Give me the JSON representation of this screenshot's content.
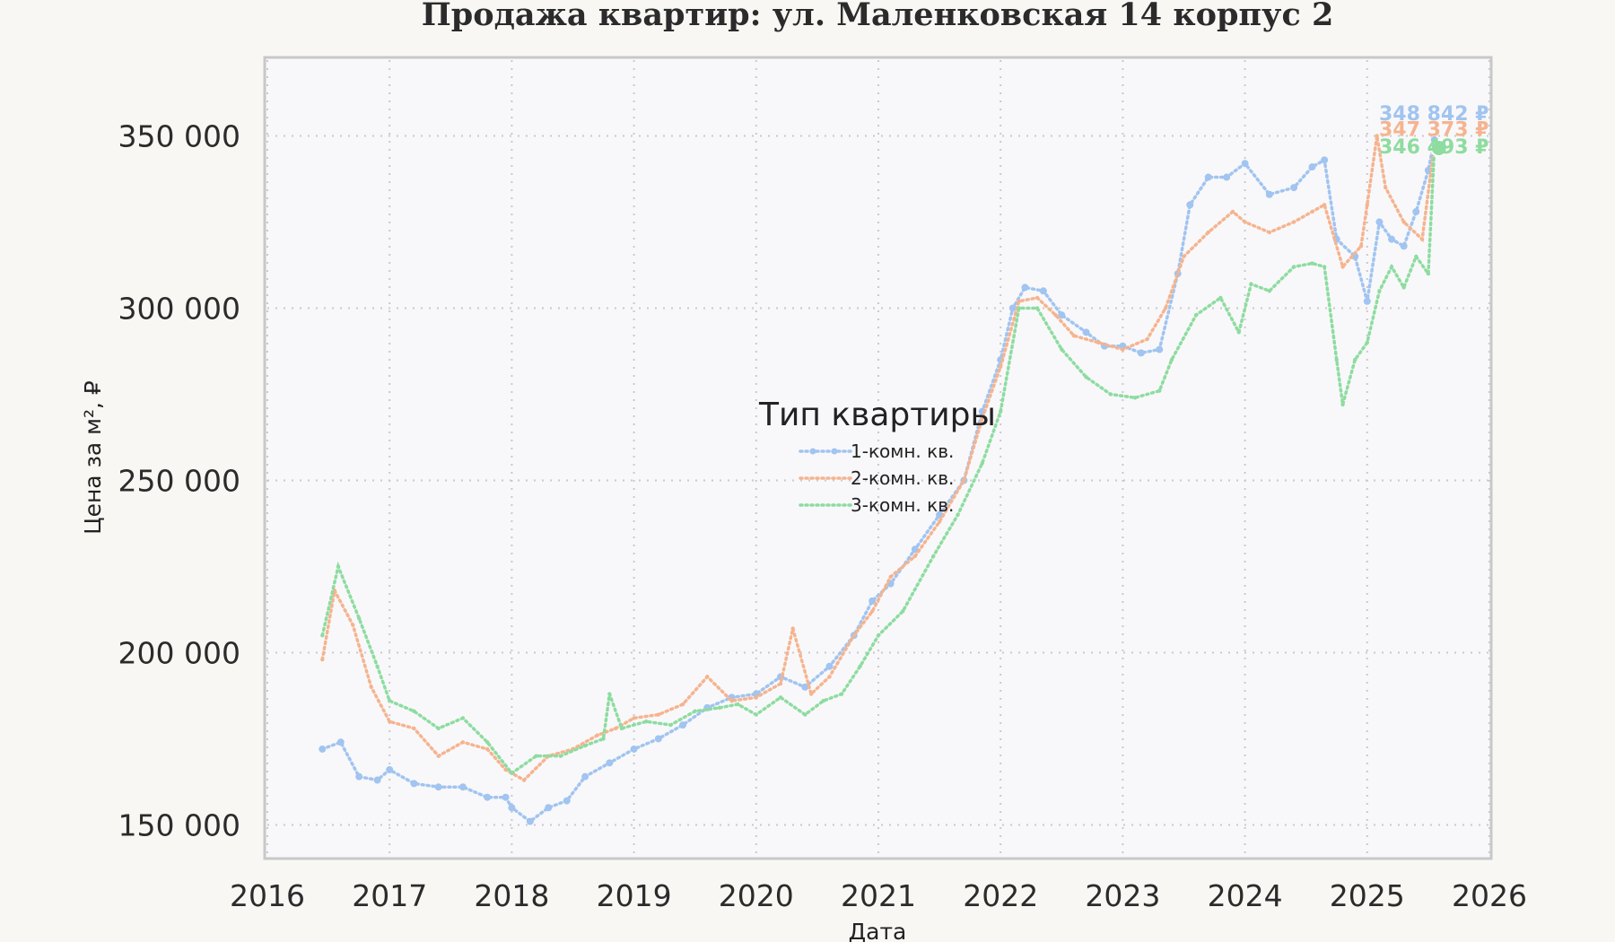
{
  "chart_data": {
    "type": "line",
    "title": "Продажа квартир: ул. Маленковская 14 корпус 2",
    "xlabel": "Дата",
    "ylabel": "Цена за м², ₽",
    "xlim": [
      2016,
      2026
    ],
    "ylim": [
      141000,
      372000
    ],
    "x_ticks": [
      "2016",
      "2017",
      "2018",
      "2019",
      "2020",
      "2021",
      "2022",
      "2023",
      "2024",
      "2025",
      "2026"
    ],
    "y_ticks": [
      {
        "value": 150000,
        "label": "150 000"
      },
      {
        "value": 200000,
        "label": "200 000"
      },
      {
        "value": 250000,
        "label": "250 000"
      },
      {
        "value": 300000,
        "label": "300 000"
      },
      {
        "value": 350000,
        "label": "350 000"
      }
    ],
    "grid": true,
    "legend": {
      "title": "Тип квартиры",
      "placement": "center"
    },
    "series": [
      {
        "name": "1-комн. кв.",
        "color": "#a1c4f0",
        "end_label": "348 842 ₽",
        "end_value": 348842,
        "points": [
          [
            2016.45,
            172000
          ],
          [
            2016.6,
            174000
          ],
          [
            2016.75,
            164000
          ],
          [
            2016.9,
            163000
          ],
          [
            2017.0,
            166000
          ],
          [
            2017.2,
            162000
          ],
          [
            2017.4,
            161000
          ],
          [
            2017.6,
            161000
          ],
          [
            2017.8,
            158000
          ],
          [
            2017.95,
            158000
          ],
          [
            2018.0,
            155000
          ],
          [
            2018.15,
            151000
          ],
          [
            2018.3,
            155000
          ],
          [
            2018.45,
            157000
          ],
          [
            2018.6,
            164000
          ],
          [
            2018.8,
            168000
          ],
          [
            2019.0,
            172000
          ],
          [
            2019.2,
            175000
          ],
          [
            2019.4,
            179000
          ],
          [
            2019.6,
            184000
          ],
          [
            2019.8,
            187000
          ],
          [
            2020.0,
            188000
          ],
          [
            2020.2,
            193000
          ],
          [
            2020.4,
            190000
          ],
          [
            2020.6,
            196000
          ],
          [
            2020.8,
            205000
          ],
          [
            2020.95,
            215000
          ],
          [
            2021.1,
            220000
          ],
          [
            2021.3,
            230000
          ],
          [
            2021.5,
            240000
          ],
          [
            2021.7,
            250000
          ],
          [
            2021.85,
            270000
          ],
          [
            2022.0,
            285000
          ],
          [
            2022.1,
            300000
          ],
          [
            2022.2,
            306000
          ],
          [
            2022.35,
            305000
          ],
          [
            2022.5,
            298000
          ],
          [
            2022.7,
            293000
          ],
          [
            2022.85,
            289000
          ],
          [
            2023.0,
            289000
          ],
          [
            2023.15,
            287000
          ],
          [
            2023.3,
            288000
          ],
          [
            2023.45,
            310000
          ],
          [
            2023.55,
            330000
          ],
          [
            2023.7,
            338000
          ],
          [
            2023.85,
            338000
          ],
          [
            2024.0,
            342000
          ],
          [
            2024.2,
            333000
          ],
          [
            2024.4,
            335000
          ],
          [
            2024.55,
            341000
          ],
          [
            2024.65,
            343000
          ],
          [
            2024.75,
            320000
          ],
          [
            2024.9,
            315000
          ],
          [
            2025.0,
            302000
          ],
          [
            2025.1,
            325000
          ],
          [
            2025.2,
            320000
          ],
          [
            2025.3,
            318000
          ],
          [
            2025.4,
            328000
          ],
          [
            2025.5,
            340000
          ],
          [
            2025.55,
            348842
          ]
        ]
      },
      {
        "name": "2-комн. кв.",
        "color": "#f5b48f",
        "end_label": "347 373 ₽",
        "end_value": 347373,
        "points": [
          [
            2016.45,
            198000
          ],
          [
            2016.55,
            218000
          ],
          [
            2016.7,
            208000
          ],
          [
            2016.85,
            190000
          ],
          [
            2017.0,
            180000
          ],
          [
            2017.2,
            178000
          ],
          [
            2017.4,
            170000
          ],
          [
            2017.6,
            174000
          ],
          [
            2017.8,
            172000
          ],
          [
            2017.95,
            166000
          ],
          [
            2018.1,
            163000
          ],
          [
            2018.3,
            170000
          ],
          [
            2018.5,
            172000
          ],
          [
            2018.7,
            176000
          ],
          [
            2018.85,
            178000
          ],
          [
            2019.0,
            181000
          ],
          [
            2019.2,
            182000
          ],
          [
            2019.4,
            185000
          ],
          [
            2019.6,
            193000
          ],
          [
            2019.8,
            186000
          ],
          [
            2020.0,
            187000
          ],
          [
            2020.2,
            191000
          ],
          [
            2020.3,
            207000
          ],
          [
            2020.45,
            188000
          ],
          [
            2020.6,
            193000
          ],
          [
            2020.8,
            205000
          ],
          [
            2020.95,
            212000
          ],
          [
            2021.1,
            222000
          ],
          [
            2021.3,
            228000
          ],
          [
            2021.5,
            238000
          ],
          [
            2021.7,
            250000
          ],
          [
            2021.85,
            268000
          ],
          [
            2022.0,
            283000
          ],
          [
            2022.15,
            302000
          ],
          [
            2022.3,
            303000
          ],
          [
            2022.45,
            298000
          ],
          [
            2022.6,
            292000
          ],
          [
            2022.8,
            290000
          ],
          [
            2023.0,
            288000
          ],
          [
            2023.2,
            291000
          ],
          [
            2023.35,
            300000
          ],
          [
            2023.5,
            315000
          ],
          [
            2023.7,
            322000
          ],
          [
            2023.9,
            328000
          ],
          [
            2024.0,
            325000
          ],
          [
            2024.2,
            322000
          ],
          [
            2024.4,
            325000
          ],
          [
            2024.55,
            328000
          ],
          [
            2024.65,
            330000
          ],
          [
            2024.8,
            312000
          ],
          [
            2024.95,
            318000
          ],
          [
            2025.0,
            330000
          ],
          [
            2025.08,
            350000
          ],
          [
            2025.15,
            335000
          ],
          [
            2025.3,
            325000
          ],
          [
            2025.45,
            320000
          ],
          [
            2025.55,
            347373
          ]
        ]
      },
      {
        "name": "3-комн. кв.",
        "color": "#8edca0",
        "end_label": "346 493 ₽",
        "end_value": 346493,
        "points": [
          [
            2016.45,
            205000
          ],
          [
            2016.58,
            225000
          ],
          [
            2016.75,
            210000
          ],
          [
            2016.9,
            196000
          ],
          [
            2017.0,
            186000
          ],
          [
            2017.2,
            183000
          ],
          [
            2017.4,
            178000
          ],
          [
            2017.6,
            181000
          ],
          [
            2017.8,
            174000
          ],
          [
            2018.0,
            165000
          ],
          [
            2018.2,
            170000
          ],
          [
            2018.4,
            170000
          ],
          [
            2018.6,
            173000
          ],
          [
            2018.75,
            175000
          ],
          [
            2018.8,
            188000
          ],
          [
            2018.9,
            178000
          ],
          [
            2019.1,
            180000
          ],
          [
            2019.3,
            179000
          ],
          [
            2019.5,
            183000
          ],
          [
            2019.7,
            184000
          ],
          [
            2019.85,
            185000
          ],
          [
            2020.0,
            182000
          ],
          [
            2020.2,
            187000
          ],
          [
            2020.4,
            182000
          ],
          [
            2020.55,
            186000
          ],
          [
            2020.7,
            188000
          ],
          [
            2020.85,
            196000
          ],
          [
            2021.0,
            205000
          ],
          [
            2021.2,
            212000
          ],
          [
            2021.45,
            228000
          ],
          [
            2021.65,
            240000
          ],
          [
            2021.85,
            255000
          ],
          [
            2022.0,
            270000
          ],
          [
            2022.15,
            300000
          ],
          [
            2022.3,
            300000
          ],
          [
            2022.5,
            288000
          ],
          [
            2022.7,
            280000
          ],
          [
            2022.9,
            275000
          ],
          [
            2023.1,
            274000
          ],
          [
            2023.3,
            276000
          ],
          [
            2023.4,
            285000
          ],
          [
            2023.6,
            298000
          ],
          [
            2023.8,
            303000
          ],
          [
            2023.95,
            293000
          ],
          [
            2024.05,
            307000
          ],
          [
            2024.2,
            305000
          ],
          [
            2024.4,
            312000
          ],
          [
            2024.55,
            313000
          ],
          [
            2024.65,
            312000
          ],
          [
            2024.75,
            285000
          ],
          [
            2024.8,
            272000
          ],
          [
            2024.9,
            285000
          ],
          [
            2025.0,
            290000
          ],
          [
            2025.1,
            305000
          ],
          [
            2025.2,
            312000
          ],
          [
            2025.3,
            306000
          ],
          [
            2025.4,
            315000
          ],
          [
            2025.5,
            310000
          ],
          [
            2025.55,
            346493
          ]
        ]
      }
    ]
  }
}
